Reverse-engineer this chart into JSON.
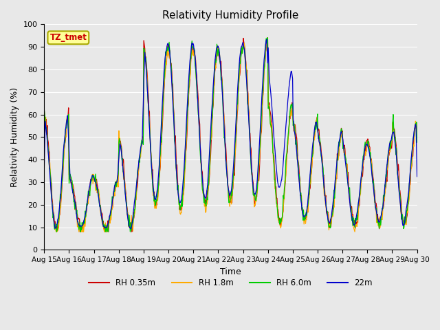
{
  "title": "Relativity Humidity Profile",
  "xlabel": "Time",
  "ylabel": "Relativity Humidity (%)",
  "ylim": [
    0,
    100
  ],
  "series_labels": [
    "RH 0.35m",
    "RH 1.8m",
    "RH 6.0m",
    "22m"
  ],
  "series_colors": [
    "#cc0000",
    "#ffaa00",
    "#00cc00",
    "#0000cc"
  ],
  "annotation_text": "TZ_tmet",
  "annotation_bg": "#ffff99",
  "annotation_border": "#aaaa00",
  "annotation_fg": "#cc0000",
  "bg_color": "#e8e8e8",
  "x_tick_labels": [
    "Aug 15",
    "Aug 16",
    "Aug 17",
    "Aug 18",
    "Aug 19",
    "Aug 20",
    "Aug 21",
    "Aug 22",
    "Aug 23",
    "Aug 24",
    "Aug 25",
    "Aug 26",
    "Aug 27",
    "Aug 28",
    "Aug 29",
    "Aug 30"
  ],
  "n_points": 720,
  "n_days": 15
}
